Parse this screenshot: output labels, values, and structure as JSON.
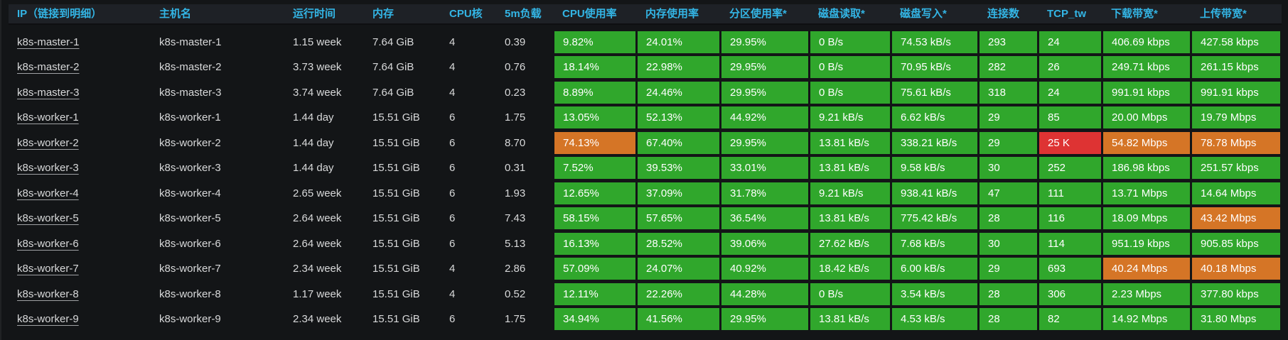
{
  "panel": {
    "colors": {
      "green": "rgba(50, 172, 45, 0.97)",
      "orange": "rgba(237, 129, 40, 0.89)",
      "red": "rgba(245, 54, 54, 0.9)",
      "header_text": "#33b5e5"
    },
    "columns": [
      {
        "label": "IP（链接到明细）",
        "name": "ip",
        "link": true,
        "colored": false
      },
      {
        "label": "主机名",
        "name": "hostname",
        "link": false,
        "colored": false
      },
      {
        "label": "运行时间",
        "name": "uptime",
        "link": false,
        "colored": false
      },
      {
        "label": "内存",
        "name": "memory",
        "link": false,
        "colored": false
      },
      {
        "label": "CPU核",
        "name": "cpu-cores",
        "link": false,
        "colored": false
      },
      {
        "label": "5m负载",
        "name": "load-5m",
        "link": false,
        "colored": false
      },
      {
        "label": "CPU使用率",
        "name": "cpu-usage",
        "link": false,
        "colored": true
      },
      {
        "label": "内存使用率",
        "name": "memory-usage",
        "link": false,
        "colored": true
      },
      {
        "label": "分区使用率*",
        "name": "partition-usage",
        "link": false,
        "colored": true
      },
      {
        "label": "磁盘读取*",
        "name": "disk-read",
        "link": false,
        "colored": true
      },
      {
        "label": "磁盘写入*",
        "name": "disk-write",
        "link": false,
        "colored": true
      },
      {
        "label": "连接数",
        "name": "connections",
        "link": false,
        "colored": true
      },
      {
        "label": "TCP_tw",
        "name": "tcp-tw",
        "link": false,
        "colored": true
      },
      {
        "label": "下载带宽*",
        "name": "download-bandwidth",
        "link": false,
        "colored": true
      },
      {
        "label": "上传带宽*",
        "name": "upload-bandwidth",
        "link": false,
        "colored": true
      }
    ],
    "rows": [
      {
        "cells": [
          {
            "text": "k8s-master-1"
          },
          {
            "text": "k8s-master-1"
          },
          {
            "text": "1.15 week"
          },
          {
            "text": "7.64 GiB"
          },
          {
            "text": "4"
          },
          {
            "text": "0.39"
          },
          {
            "text": "9.82%",
            "color": "green"
          },
          {
            "text": "24.01%",
            "color": "green"
          },
          {
            "text": "29.95%",
            "color": "green"
          },
          {
            "text": "0 B/s",
            "color": "green"
          },
          {
            "text": "74.53 kB/s",
            "color": "green"
          },
          {
            "text": "293",
            "color": "green"
          },
          {
            "text": "24",
            "color": "green"
          },
          {
            "text": "406.69 kbps",
            "color": "green"
          },
          {
            "text": "427.58 kbps",
            "color": "green"
          }
        ]
      },
      {
        "cells": [
          {
            "text": "k8s-master-2"
          },
          {
            "text": "k8s-master-2"
          },
          {
            "text": "3.73 week"
          },
          {
            "text": "7.64 GiB"
          },
          {
            "text": "4"
          },
          {
            "text": "0.76"
          },
          {
            "text": "18.14%",
            "color": "green"
          },
          {
            "text": "22.98%",
            "color": "green"
          },
          {
            "text": "29.95%",
            "color": "green"
          },
          {
            "text": "0 B/s",
            "color": "green"
          },
          {
            "text": "70.95 kB/s",
            "color": "green"
          },
          {
            "text": "282",
            "color": "green"
          },
          {
            "text": "26",
            "color": "green"
          },
          {
            "text": "249.71 kbps",
            "color": "green"
          },
          {
            "text": "261.15 kbps",
            "color": "green"
          }
        ]
      },
      {
        "cells": [
          {
            "text": "k8s-master-3"
          },
          {
            "text": "k8s-master-3"
          },
          {
            "text": "3.74 week"
          },
          {
            "text": "7.64 GiB"
          },
          {
            "text": "4"
          },
          {
            "text": "0.23"
          },
          {
            "text": "8.89%",
            "color": "green"
          },
          {
            "text": "24.46%",
            "color": "green"
          },
          {
            "text": "29.95%",
            "color": "green"
          },
          {
            "text": "0 B/s",
            "color": "green"
          },
          {
            "text": "75.61 kB/s",
            "color": "green"
          },
          {
            "text": "318",
            "color": "green"
          },
          {
            "text": "24",
            "color": "green"
          },
          {
            "text": "991.91 kbps",
            "color": "green"
          },
          {
            "text": "991.91 kbps",
            "color": "green"
          }
        ]
      },
      {
        "cells": [
          {
            "text": "k8s-worker-1"
          },
          {
            "text": "k8s-worker-1"
          },
          {
            "text": "1.44 day"
          },
          {
            "text": "15.51 GiB"
          },
          {
            "text": "6"
          },
          {
            "text": "1.75"
          },
          {
            "text": "13.05%",
            "color": "green"
          },
          {
            "text": "52.13%",
            "color": "green"
          },
          {
            "text": "44.92%",
            "color": "green"
          },
          {
            "text": "9.21 kB/s",
            "color": "green"
          },
          {
            "text": "6.62 kB/s",
            "color": "green"
          },
          {
            "text": "29",
            "color": "green"
          },
          {
            "text": "85",
            "color": "green"
          },
          {
            "text": "20.00 Mbps",
            "color": "green"
          },
          {
            "text": "19.79 Mbps",
            "color": "green"
          }
        ]
      },
      {
        "cells": [
          {
            "text": "k8s-worker-2"
          },
          {
            "text": "k8s-worker-2"
          },
          {
            "text": "1.44 day"
          },
          {
            "text": "15.51 GiB"
          },
          {
            "text": "6"
          },
          {
            "text": "8.70"
          },
          {
            "text": "74.13%",
            "color": "orange"
          },
          {
            "text": "67.40%",
            "color": "green"
          },
          {
            "text": "29.95%",
            "color": "green"
          },
          {
            "text": "13.81 kB/s",
            "color": "green"
          },
          {
            "text": "338.21 kB/s",
            "color": "green"
          },
          {
            "text": "29",
            "color": "green"
          },
          {
            "text": "25 K",
            "color": "red"
          },
          {
            "text": "54.82 Mbps",
            "color": "orange"
          },
          {
            "text": "78.78 Mbps",
            "color": "orange"
          }
        ]
      },
      {
        "cells": [
          {
            "text": "k8s-worker-3"
          },
          {
            "text": "k8s-worker-3"
          },
          {
            "text": "1.44 day"
          },
          {
            "text": "15.51 GiB"
          },
          {
            "text": "6"
          },
          {
            "text": "0.31"
          },
          {
            "text": "7.52%",
            "color": "green"
          },
          {
            "text": "39.53%",
            "color": "green"
          },
          {
            "text": "33.01%",
            "color": "green"
          },
          {
            "text": "13.81 kB/s",
            "color": "green"
          },
          {
            "text": "9.58 kB/s",
            "color": "green"
          },
          {
            "text": "30",
            "color": "green"
          },
          {
            "text": "252",
            "color": "green"
          },
          {
            "text": "186.98 kbps",
            "color": "green"
          },
          {
            "text": "251.57 kbps",
            "color": "green"
          }
        ]
      },
      {
        "cells": [
          {
            "text": "k8s-worker-4"
          },
          {
            "text": "k8s-worker-4"
          },
          {
            "text": "2.65 week"
          },
          {
            "text": "15.51 GiB"
          },
          {
            "text": "6"
          },
          {
            "text": "1.93"
          },
          {
            "text": "12.65%",
            "color": "green"
          },
          {
            "text": "37.09%",
            "color": "green"
          },
          {
            "text": "31.78%",
            "color": "green"
          },
          {
            "text": "9.21 kB/s",
            "color": "green"
          },
          {
            "text": "938.41 kB/s",
            "color": "green"
          },
          {
            "text": "47",
            "color": "green"
          },
          {
            "text": "111",
            "color": "green"
          },
          {
            "text": "13.71 Mbps",
            "color": "green"
          },
          {
            "text": "14.64 Mbps",
            "color": "green"
          }
        ]
      },
      {
        "cells": [
          {
            "text": "k8s-worker-5"
          },
          {
            "text": "k8s-worker-5"
          },
          {
            "text": "2.64 week"
          },
          {
            "text": "15.51 GiB"
          },
          {
            "text": "6"
          },
          {
            "text": "7.43"
          },
          {
            "text": "58.15%",
            "color": "green"
          },
          {
            "text": "57.65%",
            "color": "green"
          },
          {
            "text": "36.54%",
            "color": "green"
          },
          {
            "text": "13.81 kB/s",
            "color": "green"
          },
          {
            "text": "775.42 kB/s",
            "color": "green"
          },
          {
            "text": "28",
            "color": "green"
          },
          {
            "text": "116",
            "color": "green"
          },
          {
            "text": "18.09 Mbps",
            "color": "green"
          },
          {
            "text": "43.42 Mbps",
            "color": "orange"
          }
        ]
      },
      {
        "cells": [
          {
            "text": "k8s-worker-6"
          },
          {
            "text": "k8s-worker-6"
          },
          {
            "text": "2.64 week"
          },
          {
            "text": "15.51 GiB"
          },
          {
            "text": "6"
          },
          {
            "text": "5.13"
          },
          {
            "text": "16.13%",
            "color": "green"
          },
          {
            "text": "28.52%",
            "color": "green"
          },
          {
            "text": "39.06%",
            "color": "green"
          },
          {
            "text": "27.62 kB/s",
            "color": "green"
          },
          {
            "text": "7.68 kB/s",
            "color": "green"
          },
          {
            "text": "30",
            "color": "green"
          },
          {
            "text": "114",
            "color": "green"
          },
          {
            "text": "951.19 kbps",
            "color": "green"
          },
          {
            "text": "905.85 kbps",
            "color": "green"
          }
        ]
      },
      {
        "cells": [
          {
            "text": "k8s-worker-7"
          },
          {
            "text": "k8s-worker-7"
          },
          {
            "text": "2.34 week"
          },
          {
            "text": "15.51 GiB"
          },
          {
            "text": "4"
          },
          {
            "text": "2.86"
          },
          {
            "text": "57.09%",
            "color": "green"
          },
          {
            "text": "24.07%",
            "color": "green"
          },
          {
            "text": "40.92%",
            "color": "green"
          },
          {
            "text": "18.42 kB/s",
            "color": "green"
          },
          {
            "text": "6.00 kB/s",
            "color": "green"
          },
          {
            "text": "29",
            "color": "green"
          },
          {
            "text": "693",
            "color": "green"
          },
          {
            "text": "40.24 Mbps",
            "color": "orange"
          },
          {
            "text": "40.18 Mbps",
            "color": "orange"
          }
        ]
      },
      {
        "cells": [
          {
            "text": "k8s-worker-8"
          },
          {
            "text": "k8s-worker-8"
          },
          {
            "text": "1.17 week"
          },
          {
            "text": "15.51 GiB"
          },
          {
            "text": "4"
          },
          {
            "text": "0.52"
          },
          {
            "text": "12.11%",
            "color": "green"
          },
          {
            "text": "22.26%",
            "color": "green"
          },
          {
            "text": "44.28%",
            "color": "green"
          },
          {
            "text": "0 B/s",
            "color": "green"
          },
          {
            "text": "3.54 kB/s",
            "color": "green"
          },
          {
            "text": "28",
            "color": "green"
          },
          {
            "text": "306",
            "color": "green"
          },
          {
            "text": "2.23 Mbps",
            "color": "green"
          },
          {
            "text": "377.80 kbps",
            "color": "green"
          }
        ]
      },
      {
        "cells": [
          {
            "text": "k8s-worker-9"
          },
          {
            "text": "k8s-worker-9"
          },
          {
            "text": "2.34 week"
          },
          {
            "text": "15.51 GiB"
          },
          {
            "text": "6"
          },
          {
            "text": "1.75"
          },
          {
            "text": "34.94%",
            "color": "green"
          },
          {
            "text": "41.56%",
            "color": "green"
          },
          {
            "text": "29.95%",
            "color": "green"
          },
          {
            "text": "13.81 kB/s",
            "color": "green"
          },
          {
            "text": "4.53 kB/s",
            "color": "green"
          },
          {
            "text": "28",
            "color": "green"
          },
          {
            "text": "82",
            "color": "green"
          },
          {
            "text": "14.92 Mbps",
            "color": "green"
          },
          {
            "text": "31.80 Mbps",
            "color": "green"
          }
        ]
      }
    ]
  }
}
